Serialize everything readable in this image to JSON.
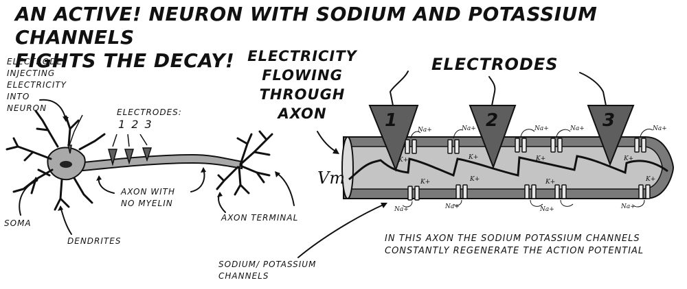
{
  "title_line1": "An Active! Neuron with sodium and potassium channels",
  "title_line2": "fights the decay!",
  "labels": {
    "electrode_injecting_1": "Electrode",
    "electrode_injecting_2": "injecting",
    "electrode_injecting_3": "electricity",
    "electrode_injecting_4": "into",
    "electrode_injecting_5": "neuron",
    "electrodes_small": "Electrodes:",
    "electrode_numbers": "1 2 3",
    "axon_no_myelin_1": "Axon with",
    "axon_no_myelin_2": "no myelin",
    "soma": "Soma",
    "dendrites": "Dendrites",
    "axon_terminal": "Axon terminal",
    "electricity_flow_1": "Electricity",
    "electricity_flow_2": "flowing",
    "electricity_flow_3": "through",
    "electricity_flow_4": "axon",
    "electrodes_big": "Electrodes",
    "electrode_1": "1",
    "electrode_2": "2",
    "electrode_3": "3",
    "vm": "Vm",
    "caption_1": "In this axon the sodium potassium channels",
    "caption_2": "constantly regenerate the action potential",
    "channels_1": "Sodium/ potassium",
    "channels_2": "channels",
    "na_ion": "Na+",
    "k_ion": "K+"
  },
  "colors": {
    "ink": "#111111",
    "membrane": "#7a7a7a",
    "axoplasm": "#c4c4c4",
    "electrode": "#5e5e5e",
    "neuron_fill": "#a9a9a9"
  }
}
